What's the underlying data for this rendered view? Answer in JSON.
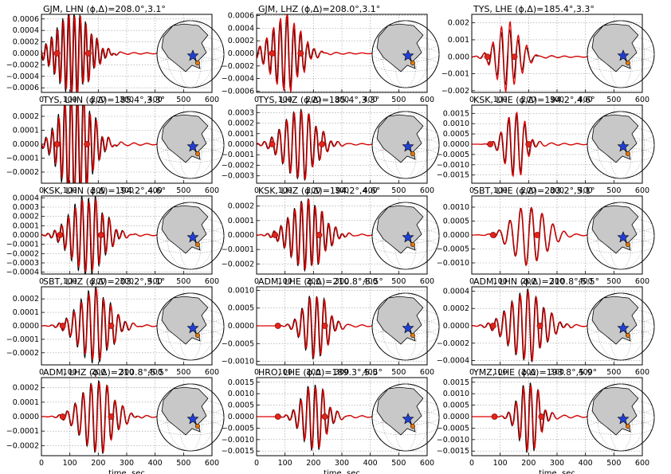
{
  "x_axis_label": "time, sec",
  "x_ticks": [
    0,
    100,
    200,
    300,
    400,
    500,
    600
  ],
  "colors": {
    "observed": "#000000",
    "synthetic": "#e00000",
    "marker": "#e0241b",
    "globe_land": "#c8c8c8",
    "epicenter_star": "#1f3fd6"
  },
  "chart_data": [
    {
      "type": "line",
      "title": "GJM, LHN (ϕ,Δ)=208.0°,3.1°",
      "ylim": [
        -0.00068,
        0.00068
      ],
      "yticks": [
        "0.0006",
        "0.0004",
        "0.0002",
        "0.0000",
        "−0.0002",
        "−0.0004",
        "−0.0006"
      ],
      "ytick_values": [
        0.0006,
        0.0004,
        0.0002,
        0,
        -0.0002,
        -0.0004,
        -0.0006
      ],
      "xlim": [
        0,
        600
      ],
      "markers_x": [
        55,
        165
      ],
      "wave": {
        "t0": 110,
        "period": 20,
        "decay": 55,
        "amp_obs": 0.00075,
        "amp_syn": 0.0007
      }
    },
    {
      "type": "line",
      "title": "GJM, LHZ (ϕ,Δ)=208.0°,3.1°",
      "ylim": [
        -0.00062,
        0.00062
      ],
      "yticks": [
        "0.0006",
        "0.0004",
        "0.0002",
        "0.0000",
        "−0.0002",
        "−0.0004",
        "−0.0006"
      ],
      "ytick_values": [
        0.0006,
        0.0004,
        0.0002,
        0,
        -0.0002,
        -0.0004,
        -0.0006
      ],
      "xlim": [
        0,
        600
      ],
      "markers_x": [
        55,
        155
      ],
      "wave": {
        "t0": 100,
        "period": 24,
        "decay": 50,
        "amp_obs": 0.00055,
        "amp_syn": 0.0006
      }
    },
    {
      "type": "line",
      "title": "TYS, LHE (ϕ,Δ)=185.4°,3.3°",
      "ylim": [
        -0.0021,
        0.0025
      ],
      "yticks": [
        "0.002",
        "0.001",
        "0.000",
        "−0.001",
        "−0.002"
      ],
      "ytick_values": [
        0.002,
        0.001,
        0,
        -0.001,
        -0.002
      ],
      "xlim": [
        0,
        600
      ],
      "markers_x": [
        55,
        150
      ],
      "wave": {
        "t0": 125,
        "period": 30,
        "decay": 40,
        "amp_obs": 0.0017,
        "amp_syn": 0.0021
      }
    },
    {
      "type": "line",
      "title": "TYS, LHN (ϕ,Δ)=185.4°,3.3°",
      "ylim": [
        -0.00028,
        0.00028
      ],
      "yticks": [
        "0.0002",
        "0.0001",
        "0.0000",
        "−0.0001",
        "−0.0002"
      ],
      "ytick_values": [
        0.0002,
        0.0001,
        0,
        -0.0001,
        -0.0002
      ],
      "xlim": [
        0,
        600
      ],
      "markers_x": [
        55,
        160
      ],
      "wave": {
        "t0": 120,
        "period": 22,
        "decay": 50,
        "amp_obs": 0.00045,
        "amp_syn": 0.0004
      }
    },
    {
      "type": "line",
      "title": "TYS, LHZ (ϕ,Δ)=185.4°,3.3°",
      "ylim": [
        -0.00037,
        0.00037
      ],
      "yticks": [
        "0.0003",
        "0.0002",
        "0.0001",
        "0.0000",
        "−0.0001",
        "−0.0002",
        "−0.0003"
      ],
      "ytick_values": [
        0.0003,
        0.0002,
        0.0001,
        0,
        -0.0001,
        -0.0002,
        -0.0003
      ],
      "xlim": [
        0,
        600
      ],
      "markers_x": [
        55,
        230
      ],
      "wave": {
        "t0": 150,
        "period": 26,
        "decay": 55,
        "amp_obs": 0.00033,
        "amp_syn": 0.00032
      }
    },
    {
      "type": "line",
      "title": "KSK, LHE (ϕ,Δ)=194.2°,4.6°",
      "ylim": [
        -0.0019,
        0.0019
      ],
      "yticks": [
        "0.0015",
        "0.0010",
        "0.0005",
        "0.0000",
        "−0.0005",
        "−0.0010",
        "−0.0015"
      ],
      "ytick_values": [
        0.0015,
        0.001,
        0.0005,
        0,
        -0.0005,
        -0.001,
        -0.0015
      ],
      "xlim": [
        0,
        600
      ],
      "markers_x": [
        65,
        200
      ],
      "wave": {
        "t0": 150,
        "period": 28,
        "decay": 35,
        "amp_obs": 0.0015,
        "amp_syn": 0.0016
      }
    },
    {
      "type": "line",
      "title": "KSK, LHN (ϕ,Δ)=194.2°,4.6°",
      "ylim": [
        -0.00042,
        0.00042
      ],
      "yticks": [
        "0.0004",
        "0.0003",
        "0.0002",
        "0.0001",
        "0.0000",
        "−0.0001",
        "−0.0002",
        "−0.0003",
        "−0.0004"
      ],
      "ytick_values": [
        0.0004,
        0.0003,
        0.0002,
        0.0001,
        0,
        -0.0001,
        -0.0002,
        -0.0003,
        -0.0004
      ],
      "xlim": [
        0,
        600
      ],
      "markers_x": [
        65,
        210
      ],
      "wave": {
        "t0": 160,
        "period": 24,
        "decay": 55,
        "amp_obs": 0.00045,
        "amp_syn": 0.0004
      }
    },
    {
      "type": "line",
      "title": "KSK, LHZ (ϕ,Δ)=194.2°,4.6°",
      "ylim": [
        -0.00027,
        0.00027
      ],
      "yticks": [
        "0.0002",
        "0.0001",
        "0.0000",
        "−0.0001",
        "−0.0002"
      ],
      "ytick_values": [
        0.0002,
        0.0001,
        0,
        -0.0001,
        -0.0002
      ],
      "xlim": [
        0,
        600
      ],
      "markers_x": [
        65,
        220
      ],
      "wave": {
        "t0": 175,
        "period": 24,
        "decay": 55,
        "amp_obs": 0.00025,
        "amp_syn": 0.00024
      }
    },
    {
      "type": "line",
      "title": "SBT, LHE (ϕ,Δ)=203.2°,5.1°",
      "ylim": [
        -0.0014,
        0.0014
      ],
      "yticks": [
        "0.0010",
        "0.0005",
        "0.0000",
        "−0.0005",
        "−0.0010"
      ],
      "ytick_values": [
        0.001,
        0.0005,
        0,
        -0.0005,
        -0.001
      ],
      "xlim": [
        0,
        600
      ],
      "markers_x": [
        75,
        230
      ],
      "wave": {
        "t0": 200,
        "period": 38,
        "decay": 55,
        "amp_obs": 0.0011,
        "amp_syn": 0.0011
      }
    },
    {
      "type": "line",
      "title": "SBT, LHZ (ϕ,Δ)=203.2°,5.1°",
      "ylim": [
        -0.00029,
        0.00029
      ],
      "yticks": [
        "0.0002",
        "0.0001",
        "0.0000",
        "−0.0001",
        "−0.0002"
      ],
      "ytick_values": [
        0.0002,
        0.0001,
        0,
        -0.0001,
        -0.0002
      ],
      "xlim": [
        0,
        600
      ],
      "markers_x": [
        75,
        245
      ],
      "wave": {
        "t0": 185,
        "period": 26,
        "decay": 55,
        "amp_obs": 0.00028,
        "amp_syn": 0.00025
      }
    },
    {
      "type": "line",
      "title": "ADM, LHE (ϕ,Δ)=210.8°,5.5°",
      "ylim": [
        -0.0011,
        0.0011
      ],
      "yticks": [
        "0.0010",
        "0.0005",
        "0.0000",
        "−0.0005",
        "−0.0010"
      ],
      "ytick_values": [
        0.001,
        0.0005,
        0,
        -0.0005,
        -0.001
      ],
      "xlim": [
        0,
        600
      ],
      "markers_x": [
        75,
        240
      ],
      "wave": {
        "t0": 205,
        "period": 26,
        "decay": 40,
        "amp_obs": 0.00095,
        "amp_syn": 0.0009
      }
    },
    {
      "type": "line",
      "title": "ADM, LHN (ϕ,Δ)=210.8°,5.5°",
      "ylim": [
        -0.00045,
        0.00045
      ],
      "yticks": [
        "0.0004",
        "0.0002",
        "0.0000",
        "−0.0002",
        "−0.0004"
      ],
      "ytick_values": [
        0.0004,
        0.0002,
        0,
        -0.0002,
        -0.0004
      ],
      "xlim": [
        0,
        600
      ],
      "markers_x": [
        75,
        240
      ],
      "wave": {
        "t0": 190,
        "period": 28,
        "decay": 60,
        "amp_obs": 0.0004,
        "amp_syn": 0.00038
      }
    },
    {
      "type": "line",
      "title": "ADM, LHZ (ϕ,Δ)=210.8°,5.5°",
      "ylim": [
        -0.00027,
        0.00027
      ],
      "yticks": [
        "0.0002",
        "0.0001",
        "0.0000",
        "−0.0001",
        "−0.0002"
      ],
      "ytick_values": [
        0.0002,
        0.0001,
        0,
        -0.0001,
        -0.0002
      ],
      "xlim": [
        0,
        600
      ],
      "markers_x": [
        75,
        245
      ],
      "wave": {
        "t0": 195,
        "period": 28,
        "decay": 55,
        "amp_obs": 0.00025,
        "amp_syn": 0.00024
      }
    },
    {
      "type": "line",
      "title": "HRO, LHE (ϕ,Δ)=189.3°,5.5°",
      "ylim": [
        -0.0017,
        0.0017
      ],
      "yticks": [
        "0.0015",
        "0.0010",
        "0.0005",
        "0.0000",
        "−0.0005",
        "−0.0010",
        "−0.0015"
      ],
      "ytick_values": [
        0.0015,
        0.001,
        0.0005,
        0,
        -0.0005,
        -0.001,
        -0.0015
      ],
      "xlim": [
        0,
        600
      ],
      "markers_x": [
        75,
        240
      ],
      "wave": {
        "t0": 200,
        "period": 26,
        "decay": 40,
        "amp_obs": 0.0015,
        "amp_syn": 0.0014
      }
    },
    {
      "type": "line",
      "title": "YMZ, LHE (ϕ,Δ)=193.8°,5.9°",
      "ylim": [
        -0.0017,
        0.0017
      ],
      "yticks": [
        "0.0015",
        "0.0010",
        "0.0005",
        "0.0000",
        "−0.0005",
        "−0.0010",
        "−0.0015"
      ],
      "ytick_values": [
        0.0015,
        0.001,
        0.0005,
        0,
        -0.0005,
        -0.001,
        -0.0015
      ],
      "xlim": [
        0,
        600
      ],
      "markers_x": [
        80,
        245
      ],
      "wave": {
        "t0": 200,
        "period": 26,
        "decay": 35,
        "amp_obs": 0.0016,
        "amp_syn": 0.0015
      }
    }
  ]
}
